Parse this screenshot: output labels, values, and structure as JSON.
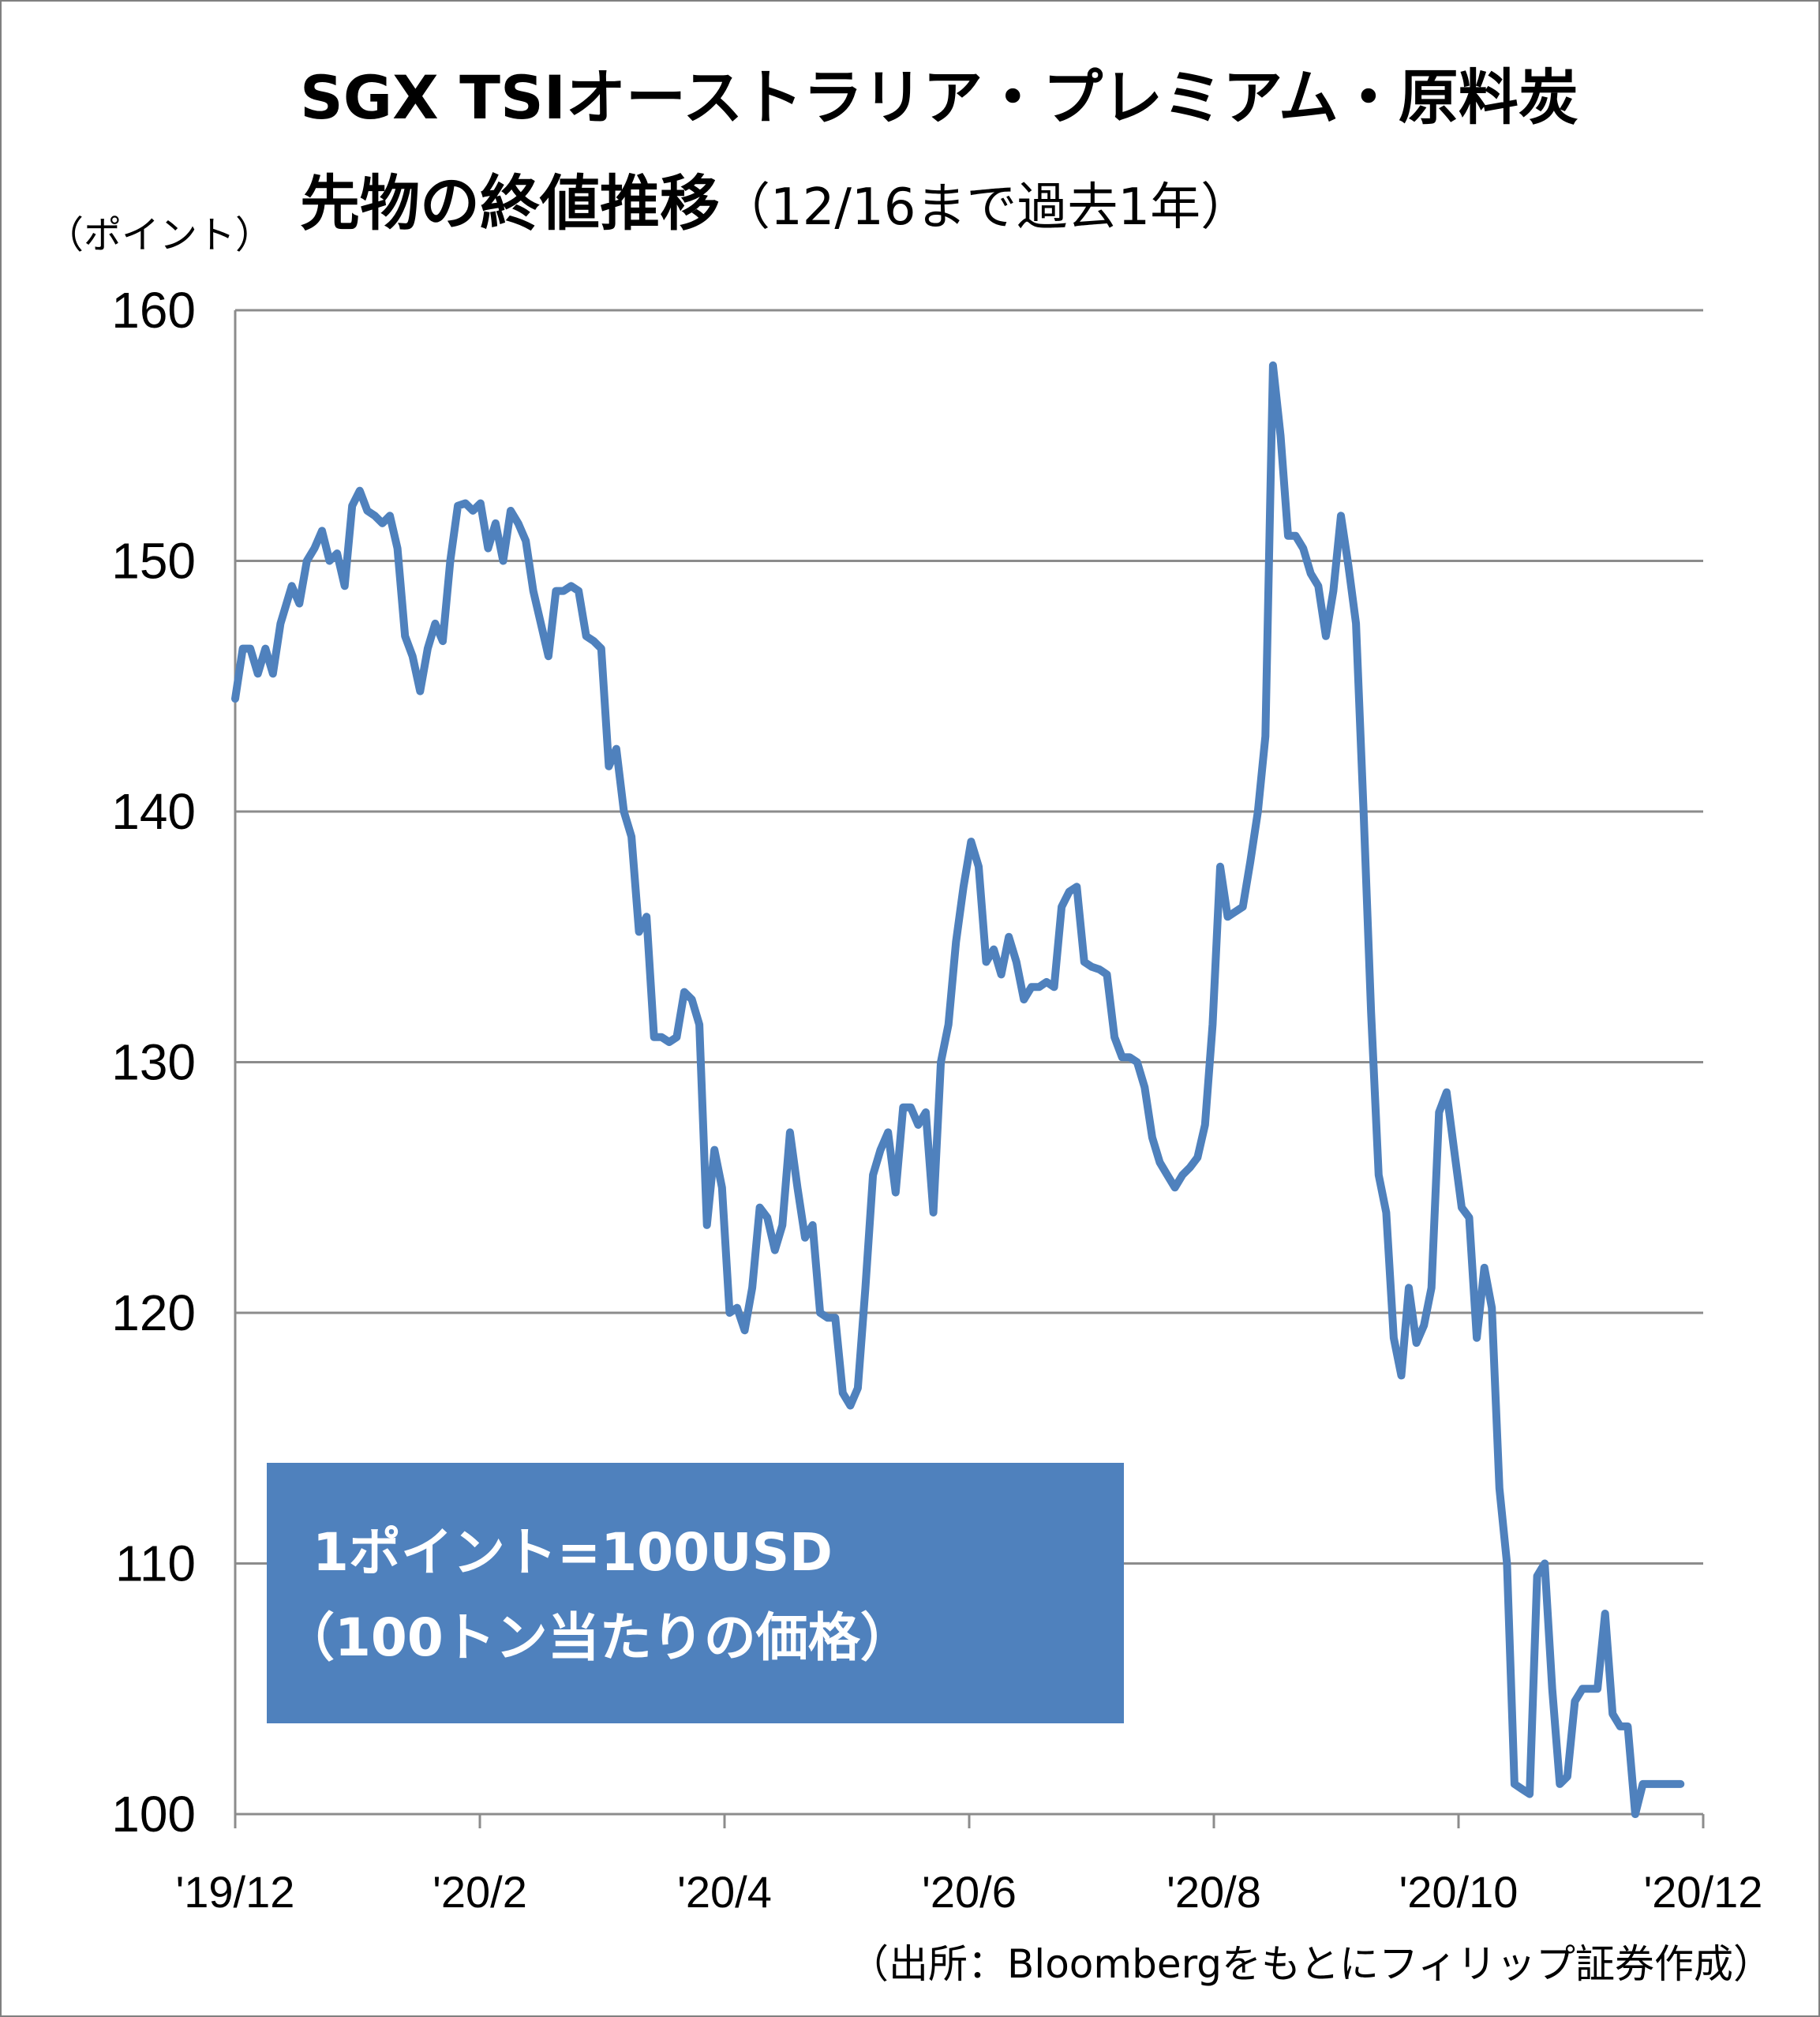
{
  "chart_data": {
    "type": "line",
    "title": "SGX TSIオーストラリア・プレミアム・原料炭",
    "title_line2": "先物の終値推移",
    "title_line2_sub": "（12/16まで過去1年）",
    "ylabel": "（ポイント）",
    "xlabel": "",
    "ylim": [
      100,
      160
    ],
    "yticks": [
      "160",
      "150",
      "140",
      "130",
      "120",
      "110",
      "100"
    ],
    "xticks": [
      "'19/12",
      "'20/2",
      "'20/4",
      "'20/6",
      "'20/8",
      "'20/10",
      "'20/12"
    ],
    "grid": true,
    "line_color": "#4f81bd",
    "note_lines": [
      "1ポイント=100USD",
      "（100トン当たりの価格）"
    ],
    "source": "（出所：Bloombergをもとにフィリップ証券作成）",
    "series": [
      {
        "values": [
          [
            0.0,
            144.5
          ],
          [
            0.4,
            146.5
          ],
          [
            0.8,
            146.5
          ],
          [
            1.2,
            145.5
          ],
          [
            1.6,
            146.5
          ],
          [
            2.0,
            145.5
          ],
          [
            2.4,
            147.5
          ],
          [
            3.0,
            149.0
          ],
          [
            3.4,
            148.3
          ],
          [
            3.8,
            150.0
          ],
          [
            4.2,
            150.5
          ],
          [
            4.6,
            151.2
          ],
          [
            5.0,
            150.0
          ],
          [
            5.4,
            150.3
          ],
          [
            5.8,
            149.0
          ],
          [
            6.2,
            152.2
          ],
          [
            6.6,
            152.8
          ],
          [
            7.0,
            152.0
          ],
          [
            7.4,
            151.8
          ],
          [
            7.8,
            151.5
          ],
          [
            8.2,
            151.8
          ],
          [
            8.6,
            150.5
          ],
          [
            9.0,
            147.0
          ],
          [
            9.4,
            146.2
          ],
          [
            9.8,
            144.8
          ],
          [
            10.2,
            146.5
          ],
          [
            10.6,
            147.5
          ],
          [
            11.0,
            146.8
          ],
          [
            11.4,
            150.0
          ],
          [
            11.8,
            152.2
          ],
          [
            12.2,
            152.3
          ],
          [
            12.6,
            152.0
          ],
          [
            13.0,
            152.3
          ],
          [
            13.4,
            150.5
          ],
          [
            13.8,
            151.5
          ],
          [
            14.2,
            150.0
          ],
          [
            14.6,
            152.0
          ],
          [
            15.0,
            151.5
          ],
          [
            15.4,
            150.8
          ],
          [
            15.8,
            148.8
          ],
          [
            16.2,
            147.5
          ],
          [
            16.6,
            146.2
          ],
          [
            17.0,
            148.8
          ],
          [
            17.4,
            148.8
          ],
          [
            17.8,
            149.0
          ],
          [
            18.2,
            148.8
          ],
          [
            18.6,
            147.0
          ],
          [
            19.0,
            146.8
          ],
          [
            19.4,
            146.5
          ],
          [
            19.8,
            141.8
          ],
          [
            20.2,
            142.5
          ],
          [
            20.6,
            140.0
          ],
          [
            21.0,
            139.0
          ],
          [
            21.4,
            135.2
          ],
          [
            21.8,
            135.8
          ],
          [
            22.2,
            131.0
          ],
          [
            22.6,
            131.0
          ],
          [
            23.0,
            130.8
          ],
          [
            23.4,
            131.0
          ],
          [
            23.8,
            132.8
          ],
          [
            24.2,
            132.5
          ],
          [
            24.6,
            131.5
          ],
          [
            25.0,
            123.5
          ],
          [
            25.4,
            126.5
          ],
          [
            25.8,
            125.0
          ],
          [
            26.2,
            120.0
          ],
          [
            26.6,
            120.2
          ],
          [
            27.0,
            119.3
          ],
          [
            27.4,
            121.0
          ],
          [
            27.8,
            124.2
          ],
          [
            28.2,
            123.8
          ],
          [
            28.6,
            122.5
          ],
          [
            29.0,
            123.5
          ],
          [
            29.4,
            127.2
          ],
          [
            29.8,
            125.0
          ],
          [
            30.2,
            123.0
          ],
          [
            30.6,
            123.5
          ],
          [
            31.0,
            120.0
          ],
          [
            31.4,
            119.8
          ],
          [
            31.8,
            119.8
          ],
          [
            32.2,
            116.8
          ],
          [
            32.6,
            116.3
          ],
          [
            33.0,
            117.0
          ],
          [
            33.4,
            121.0
          ],
          [
            33.8,
            125.5
          ],
          [
            34.2,
            126.5
          ],
          [
            34.6,
            127.2
          ],
          [
            35.0,
            124.8
          ],
          [
            35.4,
            128.2
          ],
          [
            35.8,
            128.2
          ],
          [
            36.2,
            127.5
          ],
          [
            36.6,
            128.0
          ],
          [
            37.0,
            124.0
          ],
          [
            37.4,
            130.0
          ],
          [
            37.8,
            131.5
          ],
          [
            38.2,
            134.8
          ],
          [
            38.6,
            137.0
          ],
          [
            39.0,
            138.8
          ],
          [
            39.4,
            137.8
          ],
          [
            39.8,
            134.0
          ],
          [
            40.2,
            134.5
          ],
          [
            40.6,
            133.5
          ],
          [
            41.0,
            135.0
          ],
          [
            41.4,
            134.0
          ],
          [
            41.8,
            132.5
          ],
          [
            42.2,
            133.0
          ],
          [
            42.6,
            133.0
          ],
          [
            43.0,
            133.2
          ],
          [
            43.4,
            133.0
          ],
          [
            43.8,
            136.2
          ],
          [
            44.2,
            136.8
          ],
          [
            44.6,
            137.0
          ],
          [
            45.0,
            134.0
          ],
          [
            45.4,
            133.8
          ],
          [
            45.8,
            133.7
          ],
          [
            46.2,
            133.5
          ],
          [
            46.6,
            131.0
          ],
          [
            47.0,
            130.2
          ],
          [
            47.4,
            130.2
          ],
          [
            47.8,
            130.0
          ],
          [
            48.2,
            129.0
          ],
          [
            48.6,
            127.0
          ],
          [
            49.0,
            126.0
          ],
          [
            49.4,
            125.5
          ],
          [
            49.8,
            125.0
          ],
          [
            50.2,
            125.5
          ],
          [
            50.6,
            125.8
          ],
          [
            51.0,
            126.2
          ],
          [
            51.4,
            127.5
          ],
          [
            51.8,
            131.5
          ],
          [
            52.2,
            137.8
          ],
          [
            52.6,
            135.8
          ],
          [
            53.0,
            136.0
          ],
          [
            53.4,
            136.2
          ],
          [
            53.8,
            138.0
          ],
          [
            54.2,
            140.0
          ],
          [
            54.6,
            143.0
          ],
          [
            55.0,
            157.8
          ],
          [
            55.4,
            155.0
          ],
          [
            55.8,
            151.0
          ],
          [
            56.2,
            151.0
          ],
          [
            56.6,
            150.5
          ],
          [
            57.0,
            149.5
          ],
          [
            57.4,
            149.0
          ],
          [
            57.8,
            147.0
          ],
          [
            58.2,
            148.8
          ],
          [
            58.6,
            151.8
          ],
          [
            59.0,
            149.8
          ],
          [
            59.4,
            147.5
          ],
          [
            59.8,
            140.0
          ],
          [
            60.2,
            132.0
          ],
          [
            60.6,
            125.5
          ],
          [
            61.0,
            124.0
          ],
          [
            61.4,
            119.0
          ],
          [
            61.8,
            117.5
          ],
          [
            62.2,
            121.0
          ],
          [
            62.6,
            118.8
          ],
          [
            63.0,
            119.5
          ],
          [
            63.4,
            121.0
          ],
          [
            63.8,
            128.0
          ],
          [
            64.2,
            128.8
          ],
          [
            64.6,
            126.5
          ],
          [
            65.0,
            124.2
          ],
          [
            65.4,
            123.8
          ],
          [
            65.8,
            119.0
          ],
          [
            66.2,
            121.8
          ],
          [
            66.6,
            120.2
          ],
          [
            67.0,
            113.0
          ],
          [
            67.4,
            110.0
          ],
          [
            67.8,
            101.2
          ],
          [
            68.2,
            101.0
          ],
          [
            68.6,
            100.8
          ],
          [
            69.0,
            109.5
          ],
          [
            69.4,
            110.0
          ],
          [
            69.8,
            105.0
          ],
          [
            70.2,
            101.2
          ],
          [
            70.6,
            101.5
          ],
          [
            71.0,
            104.5
          ],
          [
            71.4,
            105.0
          ],
          [
            71.8,
            105.0
          ],
          [
            72.2,
            105.0
          ],
          [
            72.6,
            108.0
          ],
          [
            73.0,
            104.0
          ],
          [
            73.4,
            103.5
          ],
          [
            73.8,
            103.5
          ],
          [
            74.2,
            100.0
          ],
          [
            74.6,
            101.2
          ],
          [
            75.0,
            101.2
          ],
          [
            75.4,
            101.2
          ],
          [
            75.8,
            101.2
          ],
          [
            76.2,
            101.2
          ],
          [
            76.6,
            101.2
          ]
        ]
      }
    ]
  }
}
